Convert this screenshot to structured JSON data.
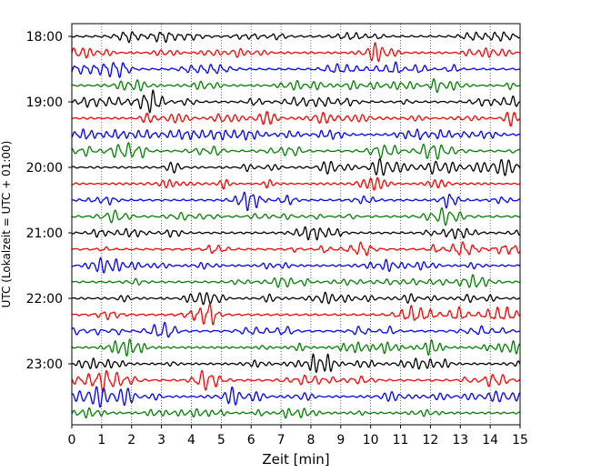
{
  "chart_data": {
    "type": "line",
    "title": "",
    "xlabel": "Zeit  [min]",
    "ylabel": "UTC (Lokalzeit = UTC + 01:00)",
    "xlim": [
      0,
      15
    ],
    "x_ticks": [
      "0",
      "1",
      "2",
      "3",
      "4",
      "5",
      "6",
      "7",
      "8",
      "9",
      "10",
      "11",
      "12",
      "13",
      "14",
      "15"
    ],
    "y_ticks": [
      "18:00",
      "19:00",
      "20:00",
      "21:00",
      "22:00",
      "23:00"
    ],
    "grid": "vertical dotted",
    "trace_colors": [
      "#000000",
      "#ff0000",
      "#0000ff",
      "#008000"
    ],
    "trace_count": 24,
    "trace_interval_minutes": 15
  }
}
